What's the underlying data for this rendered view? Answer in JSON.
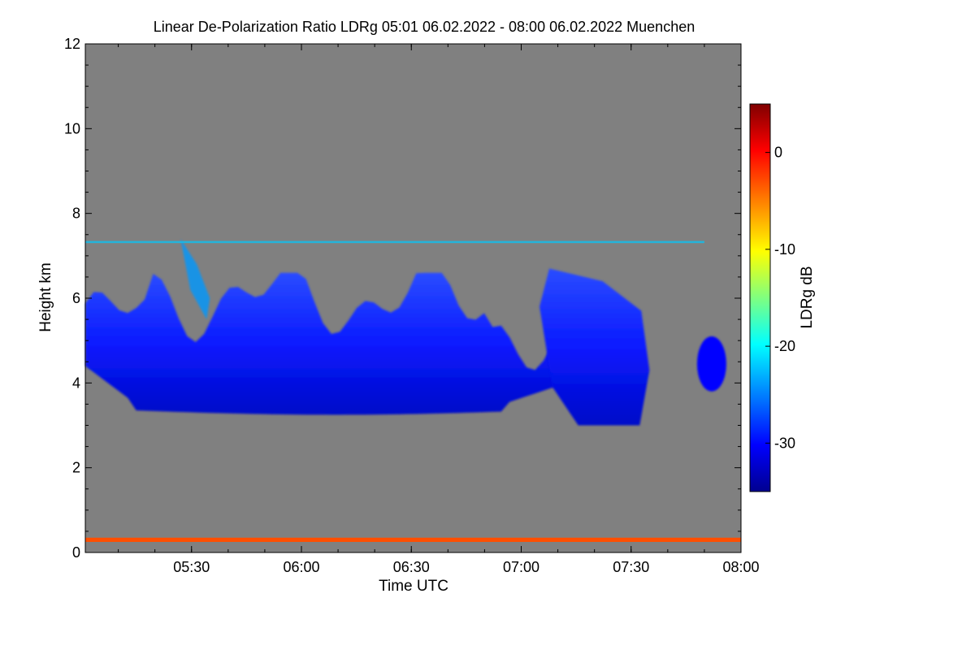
{
  "chart_data": {
    "type": "heatmap",
    "title": "Linear De-Polarization Ratio LDRg",
    "time_range": "05:01 06.02.2022 - 08:00 06.02.2022",
    "location": "Muenchen",
    "xlabel": "Time UTC",
    "ylabel": "Height km",
    "colorbar_label": "LDRg dB",
    "xlim": [
      "05:01",
      "08:00"
    ],
    "x_ticks": [
      "05:30",
      "06:00",
      "06:30",
      "07:00",
      "07:30",
      "08:00"
    ],
    "ylim": [
      0,
      12
    ],
    "y_ticks": [
      0,
      2,
      4,
      6,
      8,
      10,
      12
    ],
    "clim": [
      -35,
      5
    ],
    "colorbar_ticks": [
      0,
      -10,
      -20,
      -30
    ],
    "background_color": "#808080",
    "colormap": [
      "#00008f",
      "#0000ff",
      "#00ffff",
      "#ffff00",
      "#ff0000",
      "#800000"
    ],
    "features": [
      {
        "name": "main cloud layer",
        "time_start": "05:01",
        "time_end": "07:20",
        "base_km": 3.2,
        "top_km": 6.6,
        "ldr_db": -32
      },
      {
        "name": "cloud tower",
        "time_start": "07:05",
        "time_end": "07:35",
        "base_km": 3.0,
        "top_km": 6.7,
        "ldr_db": -31
      },
      {
        "name": "depolarizing streak",
        "time_start": "05:27",
        "time_end": "05:35",
        "base_km": 5.5,
        "top_km": 7.4,
        "ldr_db": -24
      },
      {
        "name": "thin layer",
        "time_start": "05:01",
        "time_end": "07:50",
        "base_km": 7.3,
        "top_km": 7.35,
        "ldr_db": -22
      },
      {
        "name": "isolated cloud",
        "time_start": "07:48",
        "time_end": "07:56",
        "base_km": 3.8,
        "top_km": 5.1,
        "ldr_db": -30
      },
      {
        "name": "near-ground layer",
        "time_start": "05:01",
        "time_end": "08:00",
        "base_km": 0.25,
        "top_km": 0.35,
        "ldr_db": -3
      }
    ]
  }
}
